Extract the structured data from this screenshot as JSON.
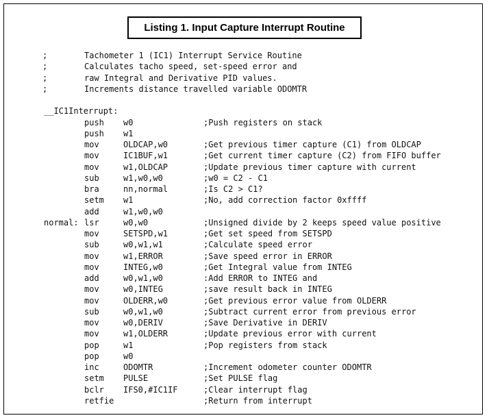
{
  "title": "Listing 1. Input Capture Interrupt Routine",
  "header_comments": [
    "Tachometer 1 (IC1) Interrupt Service Routine",
    "Calculates tacho speed, set-speed error and",
    "raw Integral and Derivative PID values.",
    "Increments distance travelled variable ODOMTR"
  ],
  "comment_marker": ";",
  "entry_label": "__IC1Interrupt:",
  "code": [
    {
      "label": "",
      "mn": "push",
      "op": "w0",
      "cm": ";Push registers on stack"
    },
    {
      "label": "",
      "mn": "push",
      "op": "w1",
      "cm": ""
    },
    {
      "label": "",
      "mn": "mov",
      "op": "OLDCAP,w0",
      "cm": ";Get previous timer capture (C1) from OLDCAP"
    },
    {
      "label": "",
      "mn": "mov",
      "op": "IC1BUF,w1",
      "cm": ";Get current timer capture (C2) from FIFO buffer"
    },
    {
      "label": "",
      "mn": "mov",
      "op": "w1,OLDCAP",
      "cm": ";Update previous timer capture with current"
    },
    {
      "label": "",
      "mn": "sub",
      "op": "w1,w0,w0",
      "cm": ";w0 = C2 - C1"
    },
    {
      "label": "",
      "mn": "bra",
      "op": "nn,normal",
      "cm": ";Is C2 > C1?"
    },
    {
      "label": "",
      "mn": "setm",
      "op": "w1",
      "cm": ";No, add correction factor 0xffff"
    },
    {
      "label": "",
      "mn": "add",
      "op": "w1,w0,w0",
      "cm": ""
    },
    {
      "label": "normal:",
      "mn": "lsr",
      "op": "w0,w0",
      "cm": ";Unsigned divide by 2 keeps speed value positive"
    },
    {
      "label": "",
      "mn": "mov",
      "op": "SETSPD,w1",
      "cm": ";Get set speed from SETSPD"
    },
    {
      "label": "",
      "mn": "sub",
      "op": "w0,w1,w1",
      "cm": ";Calculate speed error"
    },
    {
      "label": "",
      "mn": "mov",
      "op": "w1,ERROR",
      "cm": ";Save speed error in ERROR"
    },
    {
      "label": "",
      "mn": "mov",
      "op": "INTEG,w0",
      "cm": ";Get Integral value from INTEG"
    },
    {
      "label": "",
      "mn": "add",
      "op": "w0,w1,w0",
      "cm": ":Add ERROR to INTEG and"
    },
    {
      "label": "",
      "mn": "mov",
      "op": "w0,INTEG",
      "cm": ";save result back in INTEG"
    },
    {
      "label": "",
      "mn": "mov",
      "op": "OLDERR,w0",
      "cm": ";Get previous error value from OLDERR"
    },
    {
      "label": "",
      "mn": "sub",
      "op": "w0,w1,w0",
      "cm": ";Subtract current error from previous error"
    },
    {
      "label": "",
      "mn": "mov",
      "op": "w0,DERIV",
      "cm": ";Save Derivative in DERIV"
    },
    {
      "label": "",
      "mn": "mov",
      "op": "w1,OLDERR",
      "cm": ";Update previous error with current"
    },
    {
      "label": "",
      "mn": "pop",
      "op": "w1",
      "cm": ";Pop registers from stack"
    },
    {
      "label": "",
      "mn": "pop",
      "op": "w0",
      "cm": ""
    },
    {
      "label": "",
      "mn": "inc",
      "op": "ODOMTR",
      "cm": ";Increment odometer counter ODOMTR"
    },
    {
      "label": "",
      "mn": "setm",
      "op": "PULSE",
      "cm": ";Set PULSE flag"
    },
    {
      "label": "",
      "mn": "bclr",
      "op": "IFS0,#IC1IF",
      "cm": ";Clear interrupt flag"
    },
    {
      "label": "",
      "mn": "retfie",
      "op": "",
      "cm": ";Return from interrupt"
    }
  ]
}
